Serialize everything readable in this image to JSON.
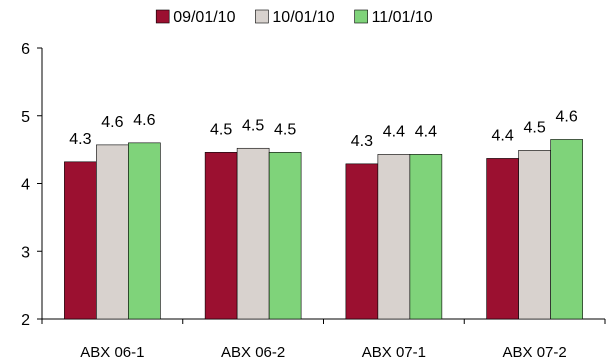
{
  "chart_data": {
    "type": "bar",
    "categories": [
      "ABX 06-1",
      "ABX 06-2",
      "ABX 07-1",
      "ABX 07-2"
    ],
    "series": [
      {
        "name": "09/01/10",
        "color": "#9b1030",
        "values": [
          4.32,
          4.46,
          4.29,
          4.37
        ],
        "labels": [
          "4.3",
          "4.5",
          "4.3",
          "4.4"
        ]
      },
      {
        "name": "10/01/10",
        "color": "#d8d2ce",
        "values": [
          4.57,
          4.52,
          4.43,
          4.49
        ],
        "labels": [
          "4.6",
          "4.5",
          "4.4",
          "4.5"
        ]
      },
      {
        "name": "11/01/10",
        "color": "#7fd37a",
        "values": [
          4.6,
          4.46,
          4.43,
          4.65
        ],
        "labels": [
          "4.6",
          "4.5",
          "4.4",
          "4.6"
        ]
      }
    ],
    "ylim": [
      2,
      6
    ],
    "yticks": [
      "2",
      "3",
      "4",
      "5",
      "6"
    ],
    "grid": false,
    "legend_position": "top"
  }
}
